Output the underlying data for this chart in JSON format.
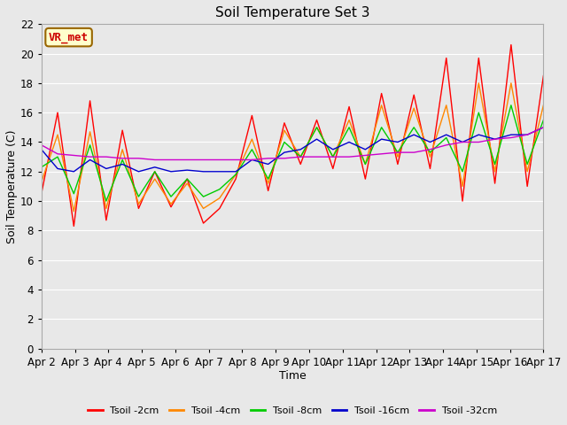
{
  "title": "Soil Temperature Set 3",
  "xlabel": "Time",
  "ylabel": "Soil Temperature (C)",
  "annotation": "VR_met",
  "ylim": [
    0,
    22
  ],
  "yticks": [
    0,
    2,
    4,
    6,
    8,
    10,
    12,
    14,
    16,
    18,
    20,
    22
  ],
  "x_labels": [
    "Apr 2",
    "Apr 3",
    "Apr 4",
    "Apr 5",
    "Apr 6",
    "Apr 7",
    "Apr 8",
    "Apr 9",
    "Apr 10",
    "Apr 11",
    "Apr 12",
    "Apr 13",
    "Apr 14",
    "Apr 15",
    "Apr 16",
    "Apr 17"
  ],
  "series": {
    "Tsoil -2cm": {
      "color": "#ff0000",
      "values": [
        10.5,
        16.0,
        8.3,
        16.8,
        8.7,
        14.8,
        9.5,
        12.0,
        9.6,
        11.5,
        8.5,
        9.5,
        11.5,
        15.8,
        10.7,
        15.3,
        12.5,
        15.5,
        12.2,
        16.4,
        11.5,
        17.3,
        12.5,
        17.2,
        12.2,
        19.7,
        10.0,
        19.7,
        11.2,
        20.6,
        11.0,
        18.5
      ]
    },
    "Tsoil -4cm": {
      "color": "#ff8800",
      "values": [
        11.3,
        14.5,
        9.3,
        14.7,
        9.5,
        13.5,
        9.8,
        11.5,
        9.8,
        11.2,
        9.5,
        10.2,
        11.8,
        14.2,
        11.2,
        14.8,
        13.0,
        15.0,
        13.0,
        15.5,
        12.5,
        16.5,
        13.0,
        16.3,
        13.0,
        16.5,
        11.0,
        18.0,
        12.0,
        18.0,
        12.0,
        16.5
      ]
    },
    "Tsoil -8cm": {
      "color": "#00cc00",
      "values": [
        12.3,
        13.0,
        10.5,
        13.8,
        10.0,
        12.8,
        10.3,
        12.0,
        10.3,
        11.5,
        10.3,
        10.8,
        11.8,
        13.5,
        11.5,
        14.0,
        13.0,
        15.0,
        13.0,
        15.0,
        12.5,
        15.0,
        13.3,
        15.0,
        13.3,
        14.3,
        12.0,
        16.0,
        12.5,
        16.5,
        12.5,
        15.5
      ]
    },
    "Tsoil -16cm": {
      "color": "#0000cc",
      "values": [
        13.5,
        12.2,
        12.0,
        12.8,
        12.2,
        12.5,
        12.0,
        12.3,
        12.0,
        12.1,
        12.0,
        12.0,
        12.0,
        12.8,
        12.5,
        13.3,
        13.5,
        14.2,
        13.5,
        14.0,
        13.5,
        14.2,
        14.0,
        14.5,
        14.0,
        14.5,
        14.0,
        14.5,
        14.2,
        14.5,
        14.5,
        15.0
      ]
    },
    "Tsoil -32cm": {
      "color": "#cc00cc",
      "values": [
        13.8,
        13.2,
        13.1,
        13.0,
        13.0,
        12.9,
        12.9,
        12.8,
        12.8,
        12.8,
        12.8,
        12.8,
        12.8,
        12.8,
        12.9,
        12.9,
        13.0,
        13.0,
        13.0,
        13.0,
        13.1,
        13.2,
        13.3,
        13.3,
        13.5,
        13.8,
        14.0,
        14.0,
        14.2,
        14.3,
        14.5,
        15.0
      ]
    }
  },
  "background_color": "#e8e8e8",
  "plot_bg_color": "#e8e8e8",
  "grid_color": "#ffffff",
  "title_fontsize": 11,
  "axis_label_fontsize": 9,
  "tick_fontsize": 8.5,
  "legend_fontsize": 8
}
